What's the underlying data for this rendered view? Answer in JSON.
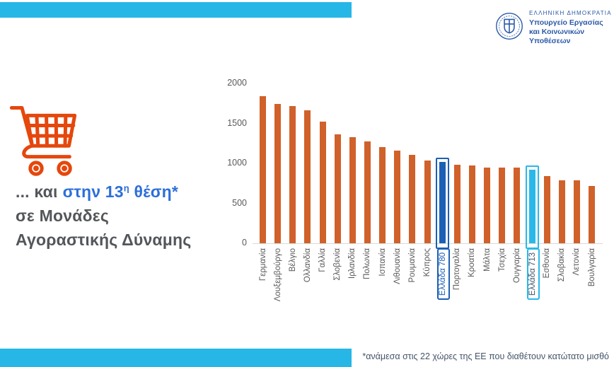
{
  "header": {
    "logo": {
      "line1": "ΕΛΛΗΝΙΚΗ ΔΗΜΟΚΡΑΤΙΑ",
      "line2": "Υπουργείο Εργασίας",
      "line3": "και Κοινωνικών Υποθέσεων"
    }
  },
  "left_panel": {
    "title_prefix": "... και",
    "title_highlight": "στην 13",
    "title_sup": "η",
    "title_highlight_rest": " θέση*",
    "line2": "σε Μονάδες",
    "line3": "Αγοραστικής Δύναμης"
  },
  "footnote": "*ανάμεσα στις 22 χώρες της ΕΕ που διαθέτουν κατώτατο μισθό",
  "colors": {
    "band_cyan": "#26b7e7",
    "bar_orange": "#d0612a",
    "highlight_dark_blue": "#1c60b5",
    "highlight_cyan": "#29b9e8",
    "cart_orange": "#e5470d",
    "headline_gray": "#53565a",
    "headline_blue": "#2d6fd9",
    "logo_navy": "#2b5aa7",
    "axis_text_gray": "#595959"
  },
  "chart_data": {
    "type": "bar",
    "title": "",
    "xlabel": "",
    "ylabel": "",
    "categories": [
      "Γερμανία",
      "Λουξεμβούργο",
      "Βέλγιο",
      "Ολλανδία",
      "Γαλλία",
      "Σλοβενία",
      "Ιρλανδία",
      "Πολωνία",
      "Ισπανία",
      "Λιθουανία",
      "Ρουμανία",
      "Κύπρος",
      "Ελλάδα 780",
      "Πορτογαλία",
      "Κροατία",
      "Μάλτα",
      "Τσεχία",
      "Ουγγαρία",
      "Ελλάδα 713",
      "Εσθονία",
      "Σλοβακία",
      "Λετονία",
      "Βουλγαρία"
    ],
    "values": [
      1840,
      1745,
      1720,
      1665,
      1525,
      1365,
      1330,
      1275,
      1200,
      1160,
      1105,
      1035,
      1020,
      980,
      975,
      950,
      945,
      945,
      920,
      840,
      790,
      785,
      720
    ],
    "bar_color": "#d0612a",
    "highlights": [
      {
        "index": 12,
        "color": "#1c60b5",
        "label_color": "#1c60b5"
      },
      {
        "index": 18,
        "color": "#29b9e8",
        "label_color": "#44546a"
      }
    ],
    "ylim": [
      0,
      2000
    ],
    "yticks": [
      0,
      500,
      1000,
      1500,
      2000
    ],
    "grid": false,
    "legend": false
  }
}
